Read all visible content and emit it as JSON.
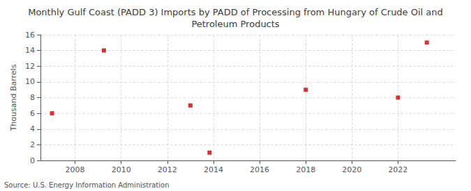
{
  "chart_data": {
    "type": "scatter",
    "title": "Monthly Gulf Coast (PADD 3) Imports by PADD of Processing from Hungary of Crude Oil and\nPetroleum Products",
    "ylabel": "Thousand Barrels",
    "annotations": [
      "Source: U.S. Energy Information Administration"
    ],
    "x": [
      2007.0,
      2009.25,
      2013.0,
      2013.83,
      2018.0,
      2022.0,
      2023.25
    ],
    "values": [
      6,
      14,
      7,
      1,
      9,
      8,
      15
    ],
    "color": "#cc0000",
    "marker": "square",
    "xlim": [
      2006.5,
      2024.5
    ],
    "xticks": [
      2008,
      2010,
      2012,
      2014,
      2016,
      2018,
      2020,
      2022
    ],
    "ylim": [
      0,
      16
    ],
    "yticks": [
      0,
      2,
      4,
      6,
      8,
      10,
      12,
      14,
      16
    ],
    "grid": true
  }
}
